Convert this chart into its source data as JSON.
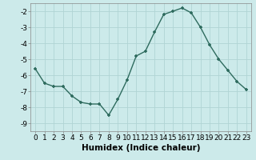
{
  "x": [
    0,
    1,
    2,
    3,
    4,
    5,
    6,
    7,
    8,
    9,
    10,
    11,
    12,
    13,
    14,
    15,
    16,
    17,
    18,
    19,
    20,
    21,
    22,
    23
  ],
  "y": [
    -5.6,
    -6.5,
    -6.7,
    -6.7,
    -7.3,
    -7.7,
    -7.8,
    -7.8,
    -8.5,
    -7.5,
    -6.3,
    -4.8,
    -4.5,
    -3.3,
    -2.2,
    -2.0,
    -1.8,
    -2.1,
    -3.0,
    -4.1,
    -5.0,
    -5.7,
    -6.4,
    -6.9
  ],
  "line_color": "#2e6b5e",
  "marker": "+",
  "markersize": 3.5,
  "linewidth": 1.0,
  "bg_color": "#cceaea",
  "grid_color": "#b0d4d4",
  "xlabel": "Humidex (Indice chaleur)",
  "ylim": [
    -9.5,
    -1.5
  ],
  "xlim": [
    -0.5,
    23.5
  ],
  "yticks": [
    -9,
    -8,
    -7,
    -6,
    -5,
    -4,
    -3,
    -2
  ],
  "xticks": [
    0,
    1,
    2,
    3,
    4,
    5,
    6,
    7,
    8,
    9,
    10,
    11,
    12,
    13,
    14,
    15,
    16,
    17,
    18,
    19,
    20,
    21,
    22,
    23
  ],
  "tick_fontsize": 6.5,
  "xlabel_fontsize": 7.5
}
